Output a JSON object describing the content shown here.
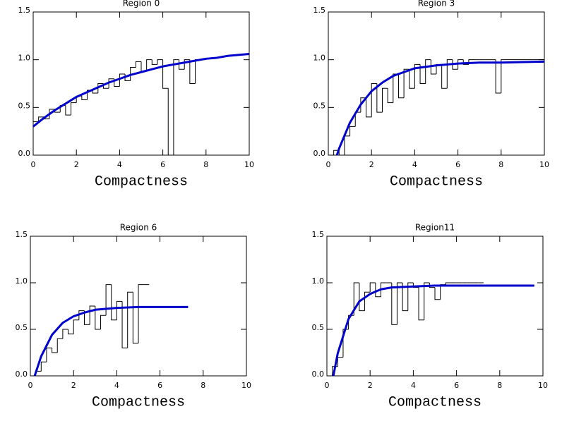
{
  "chart_data": [
    {
      "type": "line",
      "title": "Region 0",
      "xlabel": "Compactness",
      "xlim": [
        0,
        10
      ],
      "ylim": [
        0,
        1.5
      ],
      "xticks": [
        0,
        2,
        4,
        6,
        8,
        10
      ],
      "yticks": [
        {
          "value": 0,
          "label": "0.0"
        },
        0.5,
        {
          "value": 1,
          "label": "1.0"
        },
        1.5
      ],
      "series": [
        {
          "color": "#000000",
          "step": true,
          "x": [
            0,
            0.25,
            0.5,
            0.75,
            1,
            1.25,
            1.5,
            1.75,
            2,
            2.25,
            2.5,
            2.75,
            3,
            3.25,
            3.5,
            3.75,
            4,
            4.25,
            4.5,
            4.75,
            5,
            5.25,
            5.5,
            5.75,
            6,
            6.25,
            6.5,
            6.75,
            7,
            7.25,
            7.5,
            7.75,
            8
          ],
          "values": [
            0.35,
            0.4,
            0.38,
            0.48,
            0.45,
            0.52,
            0.42,
            0.55,
            0.62,
            0.58,
            0.68,
            0.65,
            0.75,
            0.7,
            0.8,
            0.72,
            0.85,
            0.78,
            0.92,
            0.98,
            0.88,
            1.0,
            0.95,
            1.0,
            0.7,
            0.0,
            1.0,
            0.9,
            1.0,
            0.75,
            1.0,
            1.0,
            1.0
          ]
        },
        {
          "color": "#0000cc",
          "x": [
            0,
            0.5,
            1,
            1.5,
            2,
            2.5,
            3,
            3.5,
            4,
            4.5,
            5,
            5.5,
            6,
            6.5,
            7,
            7.5,
            8,
            8.5,
            9,
            9.5,
            10
          ],
          "values": [
            0.3,
            0.39,
            0.47,
            0.54,
            0.61,
            0.66,
            0.71,
            0.76,
            0.8,
            0.84,
            0.87,
            0.9,
            0.93,
            0.95,
            0.97,
            0.99,
            1.01,
            1.02,
            1.04,
            1.05,
            1.06
          ]
        }
      ]
    },
    {
      "type": "line",
      "title": "Region 3",
      "xlabel": "Compactness",
      "xlim": [
        0,
        10
      ],
      "ylim": [
        0,
        1.5
      ],
      "xticks": [
        0,
        2,
        4,
        6,
        8,
        10
      ],
      "yticks": [
        {
          "value": 0,
          "label": "0.0"
        },
        0.5,
        {
          "value": 1,
          "label": "1.0"
        },
        1.5
      ],
      "series": [
        {
          "color": "#000000",
          "step": true,
          "x": [
            0,
            0.25,
            0.5,
            0.75,
            1,
            1.25,
            1.5,
            1.75,
            2,
            2.25,
            2.5,
            2.75,
            3,
            3.25,
            3.5,
            3.75,
            4,
            4.25,
            4.5,
            4.75,
            5,
            5.25,
            5.5,
            5.75,
            6,
            6.25,
            6.5,
            6.75,
            7,
            7.25,
            7.5,
            7.75,
            8,
            10
          ],
          "values": [
            0,
            0.05,
            0,
            0.2,
            0.3,
            0.45,
            0.6,
            0.4,
            0.75,
            0.45,
            0.7,
            0.55,
            0.85,
            0.6,
            0.9,
            0.7,
            0.95,
            0.75,
            1.0,
            0.85,
            0.95,
            0.7,
            1.0,
            0.9,
            1.0,
            0.95,
            1.0,
            1.0,
            1.0,
            1.0,
            1.0,
            0.65,
            1.0,
            1.0
          ]
        },
        {
          "color": "#0000cc",
          "x": [
            0.4,
            0.5,
            1,
            1.5,
            2,
            2.5,
            3,
            3.5,
            4,
            5,
            6,
            7,
            8,
            10
          ],
          "values": [
            0,
            0.07,
            0.34,
            0.53,
            0.67,
            0.76,
            0.83,
            0.87,
            0.91,
            0.94,
            0.96,
            0.97,
            0.97,
            0.98
          ]
        }
      ]
    },
    {
      "type": "line",
      "title": "Region 6",
      "xlabel": "Compactness",
      "xlim": [
        0,
        10
      ],
      "ylim": [
        0,
        1.5
      ],
      "xticks": [
        0,
        2,
        4,
        6,
        8,
        10
      ],
      "yticks": [
        {
          "value": 0,
          "label": "0.0"
        },
        0.5,
        {
          "value": 1,
          "label": "1.0"
        },
        1.5
      ],
      "series": [
        {
          "color": "#000000",
          "step": true,
          "x": [
            0,
            0.25,
            0.5,
            0.75,
            1,
            1.25,
            1.5,
            1.75,
            2,
            2.25,
            2.5,
            2.75,
            3,
            3.25,
            3.5,
            3.75,
            4,
            4.25,
            4.5,
            4.75,
            5,
            5.25,
            5.5
          ],
          "values": [
            0,
            0.05,
            0.15,
            0.3,
            0.25,
            0.4,
            0.5,
            0.45,
            0.6,
            0.7,
            0.55,
            0.75,
            0.5,
            0.65,
            0.98,
            0.6,
            0.8,
            0.3,
            0.9,
            0.35,
            0.98,
            0.98,
            0.98
          ]
        },
        {
          "color": "#0000cc",
          "x": [
            0.2,
            0.5,
            1,
            1.5,
            2,
            2.5,
            3,
            4,
            5,
            6,
            7.3
          ],
          "values": [
            0,
            0.21,
            0.44,
            0.57,
            0.64,
            0.68,
            0.71,
            0.73,
            0.74,
            0.74,
            0.74
          ]
        }
      ]
    },
    {
      "type": "line",
      "title": "Region11",
      "xlabel": "Compactness",
      "xlim": [
        0,
        10
      ],
      "ylim": [
        0,
        1.5
      ],
      "xticks": [
        0,
        2,
        4,
        6,
        8,
        10
      ],
      "yticks": [
        {
          "value": 0,
          "label": "0.0"
        },
        0.5,
        {
          "value": 1,
          "label": "1.0"
        },
        1.5
      ],
      "series": [
        {
          "color": "#000000",
          "step": true,
          "x": [
            0,
            0.25,
            0.5,
            0.75,
            1,
            1.25,
            1.5,
            1.75,
            2,
            2.25,
            2.5,
            2.75,
            3,
            3.25,
            3.5,
            3.75,
            4,
            4.25,
            4.5,
            4.75,
            5,
            5.25,
            5.5,
            5.75,
            6,
            6.25,
            6.5,
            6.75,
            7,
            7.25
          ],
          "values": [
            0,
            0.1,
            0.2,
            0.5,
            0.65,
            1.0,
            0.7,
            0.9,
            1.0,
            0.85,
            1.0,
            1.0,
            0.55,
            1.0,
            0.7,
            1.0,
            0.95,
            0.6,
            1.0,
            0.95,
            0.82,
            0.98,
            1.0,
            1.0,
            1.0,
            1.0,
            1.0,
            1.0,
            1.0,
            1.0
          ]
        },
        {
          "color": "#0000cc",
          "x": [
            0.3,
            0.5,
            1,
            1.5,
            2,
            2.5,
            3,
            4,
            5,
            7,
            9.6
          ],
          "values": [
            0,
            0.24,
            0.61,
            0.8,
            0.88,
            0.93,
            0.95,
            0.96,
            0.97,
            0.97,
            0.97
          ]
        }
      ]
    }
  ]
}
